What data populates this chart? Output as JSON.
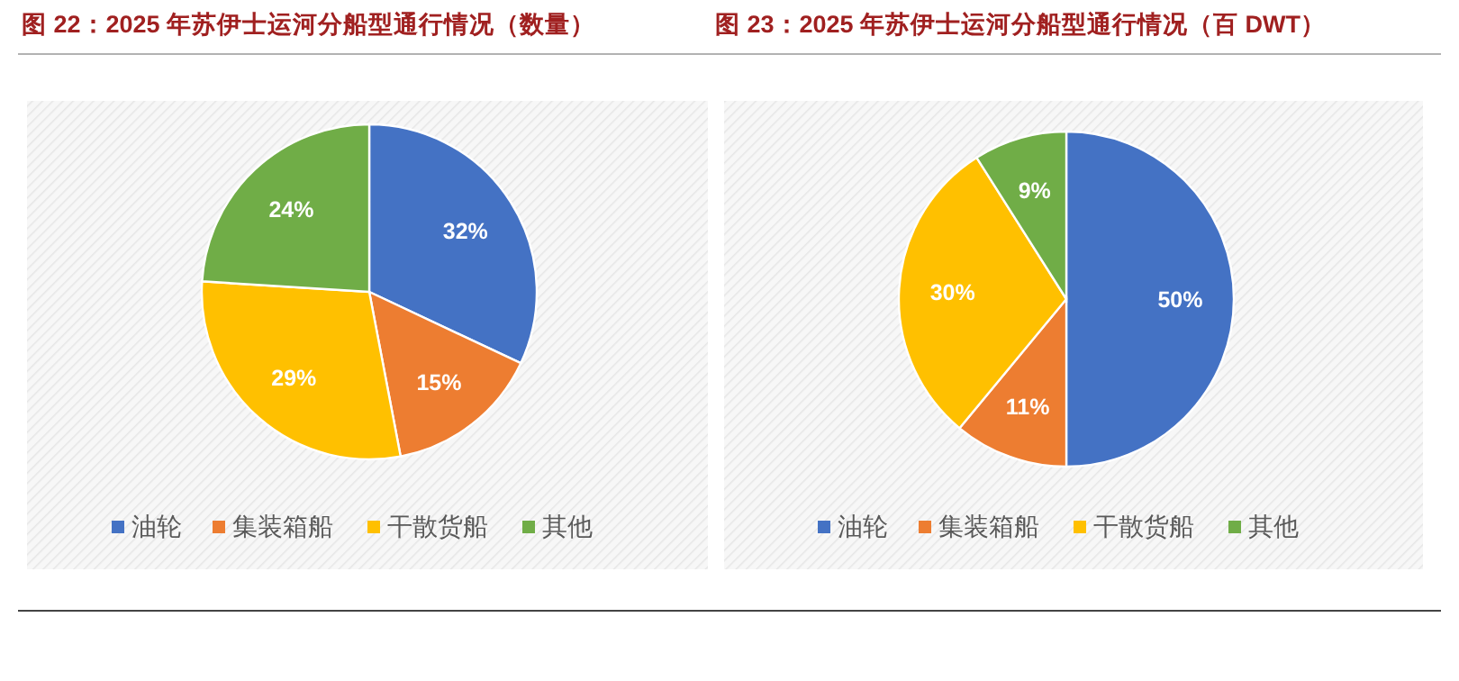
{
  "chart_data": [
    {
      "type": "pie",
      "title": "图 22：2025 年苏伊士运河分船型通行情况（数量）",
      "categories": [
        "油轮",
        "集装箱船",
        "干散货船",
        "其他"
      ],
      "values": [
        32,
        15,
        29,
        24
      ],
      "value_labels": [
        "32%",
        "15%",
        "29%",
        "24%"
      ],
      "colors": [
        "#4472c4",
        "#ed7d31",
        "#ffc000",
        "#70ad47"
      ],
      "legend": "bottom"
    },
    {
      "type": "pie",
      "title": "图 23：2025 年苏伊士运河分船型通行情况（百 DWT）",
      "categories": [
        "油轮",
        "集装箱船",
        "干散货船",
        "其他"
      ],
      "values": [
        50,
        11,
        30,
        9
      ],
      "value_labels": [
        "50%",
        "11%",
        "30%",
        "9%"
      ],
      "colors": [
        "#4472c4",
        "#ed7d31",
        "#ffc000",
        "#70ad47"
      ],
      "legend": "bottom"
    }
  ]
}
